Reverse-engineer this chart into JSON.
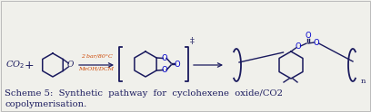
{
  "background_color": "#f0f0eb",
  "border_color": "#bbbbbb",
  "text_color": "#1a1a5e",
  "orange_color": "#cc4400",
  "blue_atom_color": "#0000cc",
  "caption_color": "#1a1a5e",
  "caption_line1": "Scheme 5:  Synthetic  pathway  for  cyclohexene  oxide/CO2",
  "caption_line2": "copolymerisation.",
  "reaction_conditions_line1": "2 bar/80°C",
  "reaction_conditions_line2": "MeOH/DCM",
  "figsize": [
    4.08,
    1.24
  ],
  "dpi": 100
}
